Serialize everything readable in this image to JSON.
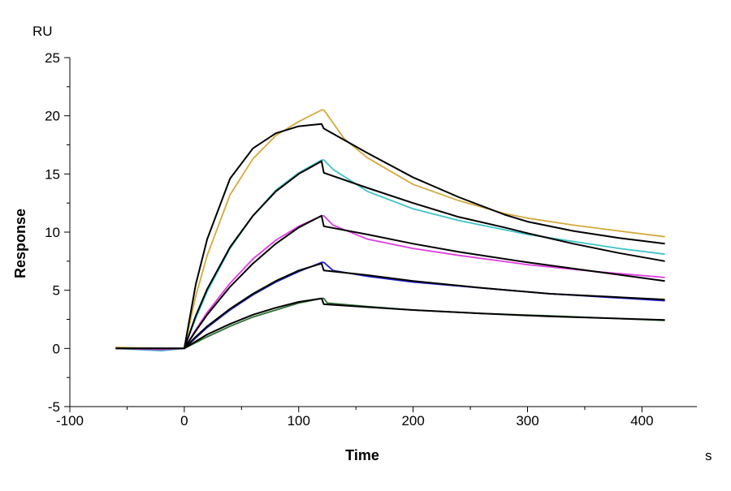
{
  "chart_data": {
    "type": "line",
    "title": "",
    "xlabel": "Time",
    "xunit": "s",
    "ylabel": "Response",
    "yunit": "RU",
    "xlim": [
      -100,
      448
    ],
    "ylim": [
      -5,
      25
    ],
    "xticks": [
      -100,
      0,
      100,
      200,
      300,
      400
    ],
    "yticks": [
      -5,
      0,
      5,
      10,
      15,
      20,
      25
    ],
    "grid": false,
    "legend": "none",
    "series": [
      {
        "kind": "data",
        "color": "#D4A93C",
        "x": [
          -60,
          -20,
          0,
          10,
          20,
          40,
          60,
          80,
          100,
          120,
          122,
          140,
          160,
          200,
          240,
          280,
          300,
          340,
          380,
          420
        ],
        "y": [
          0.1,
          0.0,
          0.0,
          4.5,
          8.0,
          13.2,
          16.3,
          18.3,
          19.5,
          20.5,
          20.5,
          18.0,
          16.4,
          14.1,
          12.7,
          11.6,
          11.2,
          10.6,
          10.1,
          9.6
        ]
      },
      {
        "kind": "fit",
        "color": "#000000",
        "x": [
          0,
          10,
          20,
          40,
          60,
          80,
          100,
          120,
          122,
          160,
          200,
          240,
          280,
          300,
          340,
          380,
          420
        ],
        "y": [
          0.0,
          5.5,
          9.4,
          14.6,
          17.2,
          18.5,
          19.1,
          19.3,
          18.9,
          16.8,
          14.7,
          13.0,
          11.5,
          10.9,
          10.1,
          9.5,
          9.0
        ]
      },
      {
        "kind": "data",
        "color": "#3CC4C8",
        "x": [
          -60,
          -20,
          0,
          10,
          20,
          40,
          60,
          80,
          100,
          120,
          122,
          130,
          160,
          200,
          240,
          280,
          300,
          340,
          380,
          420
        ],
        "y": [
          0.0,
          -0.2,
          0.0,
          2.6,
          4.9,
          8.6,
          11.4,
          13.6,
          15.1,
          16.2,
          16.2,
          15.4,
          13.5,
          12.0,
          11.0,
          10.2,
          9.8,
          9.2,
          8.6,
          8.1
        ]
      },
      {
        "kind": "fit",
        "color": "#000000",
        "x": [
          0,
          10,
          20,
          40,
          60,
          80,
          100,
          120,
          122,
          160,
          200,
          240,
          280,
          300,
          340,
          380,
          420
        ],
        "y": [
          0.0,
          2.8,
          5.1,
          8.7,
          11.4,
          13.5,
          15.0,
          16.1,
          15.1,
          13.8,
          12.5,
          11.3,
          10.4,
          9.9,
          9.0,
          8.2,
          7.5
        ]
      },
      {
        "kind": "data",
        "color": "#E03CE0",
        "x": [
          -60,
          -20,
          0,
          10,
          20,
          40,
          60,
          80,
          100,
          120,
          122,
          130,
          160,
          200,
          240,
          300,
          360,
          420
        ],
        "y": [
          0.0,
          -0.1,
          0.0,
          1.6,
          3.1,
          5.6,
          7.7,
          9.3,
          10.5,
          11.4,
          11.4,
          10.6,
          9.4,
          8.6,
          8.0,
          7.2,
          6.6,
          6.1
        ]
      },
      {
        "kind": "fit",
        "color": "#000000",
        "x": [
          0,
          10,
          20,
          40,
          60,
          80,
          100,
          120,
          122,
          160,
          200,
          240,
          300,
          360,
          420
        ],
        "y": [
          0.0,
          1.5,
          2.9,
          5.3,
          7.3,
          9.0,
          10.4,
          11.4,
          10.5,
          9.8,
          9.0,
          8.3,
          7.4,
          6.6,
          5.8
        ]
      },
      {
        "kind": "data",
        "color": "#2020D0",
        "x": [
          -60,
          -20,
          0,
          10,
          20,
          40,
          60,
          80,
          100,
          120,
          122,
          130,
          160,
          200,
          260,
          320,
          420
        ],
        "y": [
          0.0,
          0.0,
          0.0,
          0.9,
          1.8,
          3.3,
          4.6,
          5.7,
          6.6,
          7.4,
          7.4,
          6.7,
          6.2,
          5.7,
          5.2,
          4.7,
          4.1
        ]
      },
      {
        "kind": "fit",
        "color": "#000000",
        "x": [
          0,
          10,
          20,
          40,
          60,
          80,
          100,
          120,
          122,
          160,
          200,
          260,
          320,
          420
        ],
        "y": [
          0.0,
          1.0,
          1.9,
          3.4,
          4.7,
          5.8,
          6.7,
          7.3,
          6.7,
          6.3,
          5.8,
          5.2,
          4.7,
          4.2
        ]
      },
      {
        "kind": "data",
        "color": "#2E7031",
        "x": [
          -60,
          -20,
          0,
          10,
          20,
          40,
          60,
          80,
          100,
          120,
          122,
          125,
          160,
          200,
          260,
          320,
          420
        ],
        "y": [
          0.0,
          0.0,
          0.0,
          0.5,
          1.0,
          1.9,
          2.7,
          3.3,
          3.9,
          4.3,
          4.3,
          3.9,
          3.6,
          3.3,
          3.0,
          2.8,
          2.4
        ]
      },
      {
        "kind": "fit",
        "color": "#000000",
        "x": [
          -60,
          0,
          10,
          20,
          40,
          60,
          80,
          100,
          120,
          122,
          160,
          200,
          260,
          320,
          420
        ],
        "y": [
          0.0,
          0.0,
          0.6,
          1.2,
          2.1,
          2.9,
          3.5,
          4.0,
          4.3,
          3.8,
          3.55,
          3.3,
          3.0,
          2.75,
          2.45
        ]
      }
    ]
  }
}
